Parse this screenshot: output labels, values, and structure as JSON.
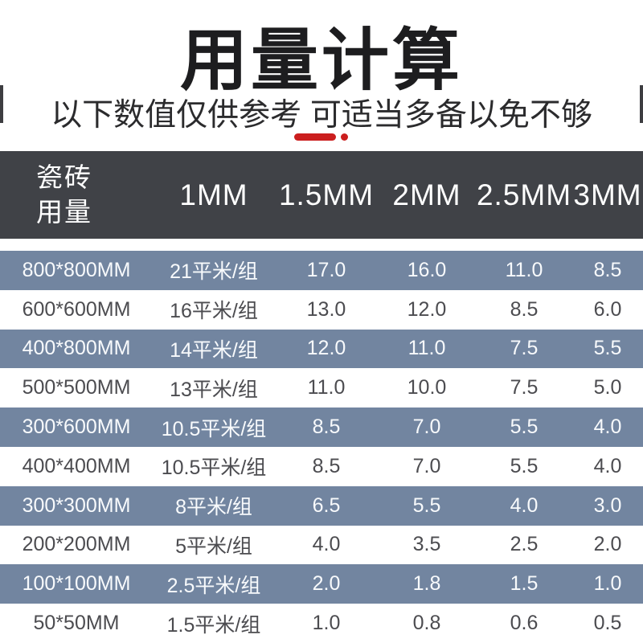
{
  "page": {
    "title": "用量计算",
    "subtitle": "以下数值仅供参考 可适当多备以免不够"
  },
  "colors": {
    "title_text": "#1d1d1f",
    "subtitle_text": "#2b2b2d",
    "accent_red": "#cb1e1e",
    "header_bg": "#404247",
    "header_text": "#ffffff",
    "row_blue_bg": "#7285A0",
    "row_blue_text": "#f8fafc",
    "row_white_bg": "#ffffff",
    "row_white_text": "#4c4c50"
  },
  "chart_data": {
    "type": "table",
    "title": "用量计算",
    "note": "以下数值仅供参考 可适当多备以免不够",
    "corner": {
      "line1": "瓷砖",
      "line2": "用量"
    },
    "columns": [
      "1MM",
      "1.5MM",
      "2MM",
      "2.5MM",
      "3MM"
    ],
    "rows": [
      [
        "800*800MM",
        "21平米/组",
        "17.0",
        "16.0",
        "11.0",
        "8.5"
      ],
      [
        "600*600MM",
        "16平米/组",
        "13.0",
        "12.0",
        "8.5",
        "6.0"
      ],
      [
        "400*800MM",
        "14平米/组",
        "12.0",
        "11.0",
        "7.5",
        "5.5"
      ],
      [
        "500*500MM",
        "13平米/组",
        "11.0",
        "10.0",
        "7.5",
        "5.0"
      ],
      [
        "300*600MM",
        "10.5平米/组",
        "8.5",
        "7.0",
        "5.5",
        "4.0"
      ],
      [
        "400*400MM",
        "10.5平米/组",
        "8.5",
        "7.0",
        "5.5",
        "4.0"
      ],
      [
        "300*300MM",
        "8平米/组",
        "6.5",
        "5.5",
        "4.0",
        "3.0"
      ],
      [
        "200*200MM",
        "5平米/组",
        "4.0",
        "3.5",
        "2.5",
        "2.0"
      ],
      [
        "100*100MM",
        "2.5平米/组",
        "2.0",
        "1.8",
        "1.5",
        "1.0"
      ],
      [
        "50*50MM",
        "1.5平米/组",
        "1.0",
        "0.8",
        "0.6",
        "0.5"
      ]
    ]
  }
}
